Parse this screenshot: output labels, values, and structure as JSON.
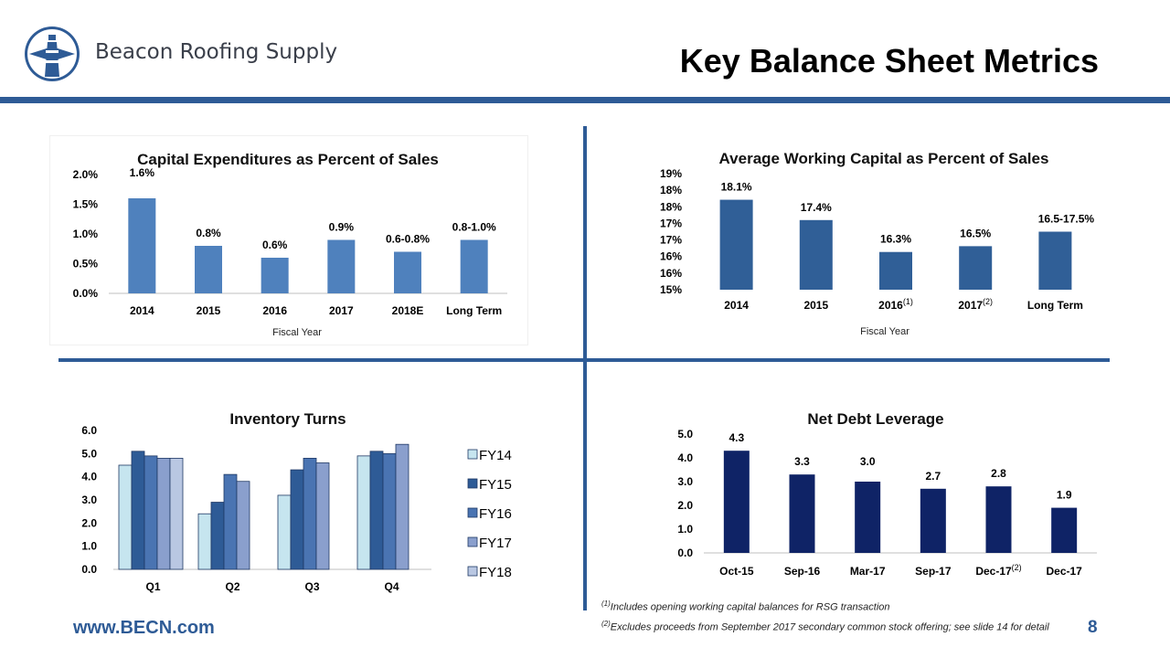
{
  "header": {
    "brand": "Beacon Roofing Supply",
    "title": "Key Balance Sheet Metrics",
    "logo_icon": "lighthouse-logo-icon"
  },
  "colors": {
    "accent": "#2e5b96",
    "capex_bar": "#4f81bd",
    "wc_bar": "#305f97",
    "debt_bar": "#0f2366",
    "fy14": "#c6e5ef",
    "fy15": "#2e5b96",
    "fy16": "#4a74b2",
    "fy17": "#8a9fcd",
    "fy18": "#b9c7e2"
  },
  "chart_data": [
    {
      "id": "capex",
      "type": "bar",
      "title": "Capital Expenditures as Percent of Sales",
      "xlabel": "Fiscal Year",
      "ylabel": "",
      "categories": [
        "2014",
        "2015",
        "2016",
        "2017",
        "2018E",
        "Long Term"
      ],
      "values": [
        1.6,
        0.8,
        0.6,
        0.9,
        0.7,
        0.9
      ],
      "data_labels": [
        "1.6%",
        "0.8%",
        "0.6%",
        "0.9%",
        "0.6-0.8%",
        "0.8-1.0%"
      ],
      "ylim": [
        0,
        2.0
      ],
      "y_ticks": [
        0,
        0.5,
        1.0,
        1.5,
        2.0
      ],
      "y_tick_labels": [
        "0.0%",
        "0.5%",
        "1.0%",
        "1.5%",
        "2.0%"
      ],
      "grid": false
    },
    {
      "id": "working-capital",
      "type": "bar",
      "title": "Average Working Capital as Percent of Sales",
      "xlabel": "Fiscal Year",
      "ylabel": "",
      "categories": [
        "2014",
        "2015",
        "2016",
        "2017",
        "Long Term"
      ],
      "category_superscripts": [
        "",
        "",
        "(1)",
        "(2)",
        ""
      ],
      "values": [
        18.1,
        17.4,
        16.3,
        16.5,
        17.0
      ],
      "data_labels": [
        "18.1%",
        "17.4%",
        "16.3%",
        "16.5%",
        "16.5-17.5%"
      ],
      "ylim": [
        15,
        19
      ],
      "y_tick_labels": [
        "15%",
        "16%",
        "16%",
        "17%",
        "17%",
        "18%",
        "18%",
        "19%"
      ],
      "grid": false
    },
    {
      "id": "inventory-turns",
      "type": "bar",
      "title": "Inventory Turns",
      "xlabel": "",
      "ylabel": "",
      "categories": [
        "Q1",
        "Q2",
        "Q3",
        "Q4"
      ],
      "series": [
        {
          "name": "FY14",
          "values": [
            4.5,
            2.4,
            3.2,
            4.9
          ]
        },
        {
          "name": "FY15",
          "values": [
            5.1,
            2.9,
            4.3,
            5.1
          ]
        },
        {
          "name": "FY16",
          "values": [
            4.9,
            4.1,
            4.8,
            5.0
          ]
        },
        {
          "name": "FY17",
          "values": [
            4.8,
            3.8,
            4.6,
            5.4
          ]
        },
        {
          "name": "FY18",
          "values": [
            4.8,
            null,
            null,
            null
          ]
        }
      ],
      "ylim": [
        0,
        6.0
      ],
      "y_ticks": [
        0,
        1,
        2,
        3,
        4,
        5,
        6
      ],
      "y_tick_labels": [
        "0.0",
        "1.0",
        "2.0",
        "3.0",
        "4.0",
        "5.0",
        "6.0"
      ],
      "legend": "right",
      "grid": false
    },
    {
      "id": "net-debt",
      "type": "bar",
      "title": "Net Debt Leverage",
      "xlabel": "",
      "ylabel": "",
      "categories": [
        "Oct-15",
        "Sep-16",
        "Mar-17",
        "Sep-17",
        "Dec-17",
        "Dec-17"
      ],
      "category_superscripts": [
        "",
        "",
        "",
        "",
        "(2)",
        ""
      ],
      "values": [
        4.3,
        3.3,
        3.0,
        2.7,
        2.8,
        1.9
      ],
      "data_labels": [
        "4.3",
        "3.3",
        "3.0",
        "2.7",
        "2.8",
        "1.9"
      ],
      "ylim": [
        0,
        5.0
      ],
      "y_ticks": [
        0,
        1,
        2,
        3,
        4,
        5
      ],
      "y_tick_labels": [
        "0.0",
        "1.0",
        "2.0",
        "3.0",
        "4.0",
        "5.0"
      ],
      "grid": false
    }
  ],
  "footnotes": [
    {
      "marker": "(1)",
      "text": "Includes opening working capital balances for RSG transaction"
    },
    {
      "marker": "(2)",
      "text": "Excludes proceeds from September 2017 secondary common stock offering; see slide 14 for detail"
    }
  ],
  "footer": {
    "url": "www.BECN.com",
    "page_number": "8"
  }
}
